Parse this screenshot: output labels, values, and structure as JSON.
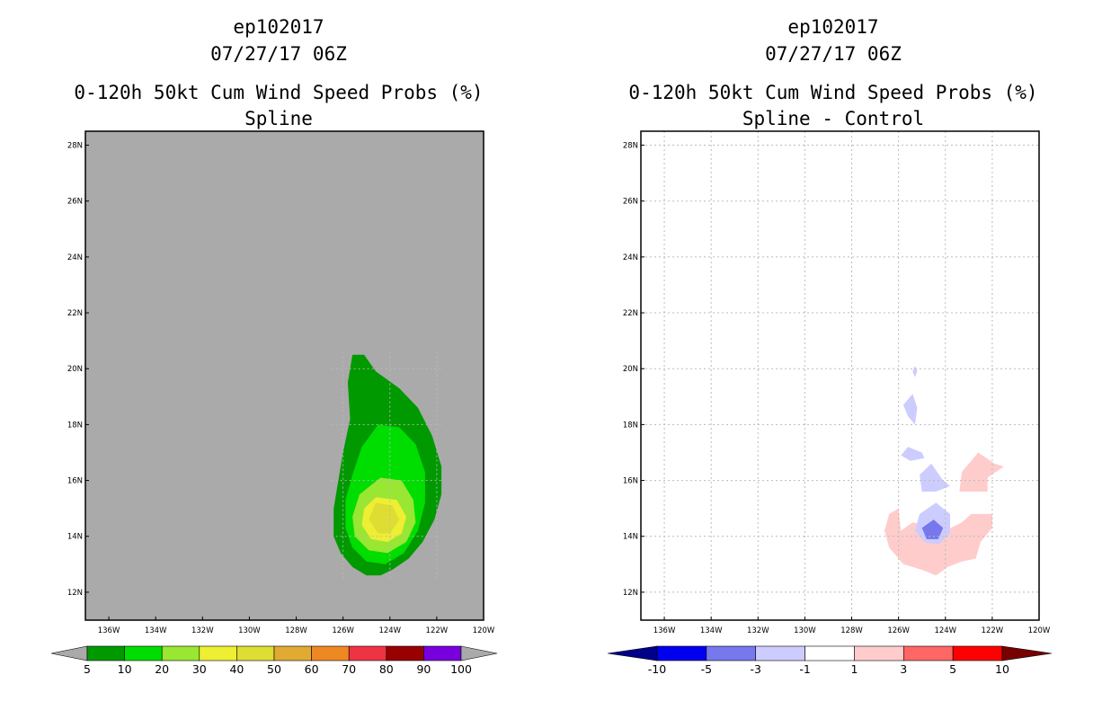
{
  "left": {
    "title_lines": [
      "ep102017",
      "07/27/17 06Z",
      "0-120h 50kt Cum Wind Speed Probs (%)",
      "Spline"
    ],
    "chart_data": {
      "type": "heatmap",
      "title": "0-120h 50kt Cum Wind Speed Probs (%)",
      "subtitle": "Spline",
      "storm": "ep102017",
      "time": "07/27/17 06Z",
      "xlabel": "",
      "ylabel": "",
      "xlim": [
        -137,
        -120
      ],
      "ylim": [
        11,
        28.5
      ],
      "x_ticks": [
        -136,
        -134,
        -132,
        -130,
        -128,
        -126,
        -124,
        -122,
        -120
      ],
      "x_tick_labels": [
        "136W",
        "134W",
        "132W",
        "130W",
        "128W",
        "126W",
        "124W",
        "122W",
        "120W"
      ],
      "y_ticks": [
        12,
        14,
        16,
        18,
        20,
        22,
        24,
        26,
        28
      ],
      "y_tick_labels": [
        "12N",
        "14N",
        "16N",
        "18N",
        "20N",
        "22N",
        "24N",
        "26N",
        "28N"
      ],
      "background_color": "#aaaaaa",
      "contours": [
        {
          "level": "5-10",
          "color": "#009900",
          "points": [
            [
              -125.6,
              20.5
            ],
            [
              -125.1,
              20.5
            ],
            [
              -124.6,
              19.9
            ],
            [
              -123.6,
              19.3
            ],
            [
              -122.8,
              18.6
            ],
            [
              -122.2,
              17.6
            ],
            [
              -121.8,
              16.5
            ],
            [
              -121.8,
              15.5
            ],
            [
              -122.1,
              14.6
            ],
            [
              -122.6,
              13.8
            ],
            [
              -123.2,
              13.2
            ],
            [
              -123.9,
              12.8
            ],
            [
              -124.4,
              12.6
            ],
            [
              -125.0,
              12.6
            ],
            [
              -125.6,
              12.9
            ],
            [
              -126.1,
              13.4
            ],
            [
              -126.4,
              14.0
            ],
            [
              -126.4,
              15.0
            ],
            [
              -126.2,
              16.0
            ],
            [
              -126.0,
              17.0
            ],
            [
              -125.7,
              18.2
            ],
            [
              -125.8,
              19.5
            ]
          ]
        },
        {
          "level": "10-20",
          "color": "#00dd00",
          "points": [
            [
              -124.5,
              18.0
            ],
            [
              -123.6,
              17.9
            ],
            [
              -122.9,
              17.3
            ],
            [
              -122.5,
              16.3
            ],
            [
              -122.5,
              15.2
            ],
            [
              -122.8,
              14.2
            ],
            [
              -123.4,
              13.4
            ],
            [
              -124.2,
              13.0
            ],
            [
              -125.0,
              13.1
            ],
            [
              -125.6,
              13.6
            ],
            [
              -125.9,
              14.3
            ],
            [
              -125.9,
              15.3
            ],
            [
              -125.6,
              16.2
            ],
            [
              -125.2,
              17.2
            ]
          ]
        },
        {
          "level": "20-30",
          "color": "#99e633",
          "points": [
            [
              -124.4,
              16.1
            ],
            [
              -123.5,
              16.0
            ],
            [
              -123.0,
              15.3
            ],
            [
              -122.9,
              14.5
            ],
            [
              -123.3,
              13.8
            ],
            [
              -124.1,
              13.4
            ],
            [
              -124.9,
              13.5
            ],
            [
              -125.5,
              14.0
            ],
            [
              -125.6,
              14.7
            ],
            [
              -125.3,
              15.5
            ]
          ]
        },
        {
          "level": "30-40",
          "color": "#eeee33",
          "points": [
            [
              -124.6,
              15.4
            ],
            [
              -123.7,
              15.3
            ],
            [
              -123.3,
              14.7
            ],
            [
              -123.5,
              14.1
            ],
            [
              -124.1,
              13.8
            ],
            [
              -124.8,
              13.9
            ],
            [
              -125.2,
              14.4
            ],
            [
              -125.1,
              15.0
            ]
          ]
        },
        {
          "level": "40-50",
          "color": "#dddd33",
          "points": [
            [
              -124.6,
              15.2
            ],
            [
              -123.9,
              15.1
            ],
            [
              -123.6,
              14.6
            ],
            [
              -124.0,
              14.1
            ],
            [
              -124.5,
              14.1
            ],
            [
              -124.9,
              14.6
            ]
          ]
        }
      ],
      "legend": {
        "position": "bottom",
        "labels": [
          "5",
          "10",
          "20",
          "30",
          "40",
          "50",
          "60",
          "70",
          "80",
          "90",
          "100"
        ],
        "under_color": "#aaaaaa",
        "over_color": "#aaaaaa",
        "colors": [
          "#009900",
          "#00dd00",
          "#99e633",
          "#eeee33",
          "#dddd33",
          "#e0aa33",
          "#ee8822",
          "#ee3344",
          "#990000",
          "#7700dd"
        ]
      }
    }
  },
  "right": {
    "title_lines": [
      "ep102017",
      "07/27/17 06Z",
      "0-120h 50kt Cum Wind Speed Probs (%)",
      "Spline - Control"
    ],
    "chart_data": {
      "type": "heatmap",
      "title": "0-120h 50kt Cum Wind Speed Probs (%)",
      "subtitle": "Spline - Control",
      "storm": "ep102017",
      "time": "07/27/17 06Z",
      "xlabel": "",
      "ylabel": "",
      "xlim": [
        -137,
        -120
      ],
      "ylim": [
        11,
        28.5
      ],
      "grid": true,
      "x_ticks": [
        -136,
        -134,
        -132,
        -130,
        -128,
        -126,
        -124,
        -122,
        -120
      ],
      "x_tick_labels": [
        "136W",
        "134W",
        "132W",
        "130W",
        "128W",
        "126W",
        "124W",
        "122W",
        "120W"
      ],
      "y_ticks": [
        12,
        14,
        16,
        18,
        20,
        22,
        24,
        26,
        28
      ],
      "y_tick_labels": [
        "12N",
        "14N",
        "16N",
        "18N",
        "20N",
        "22N",
        "24N",
        "26N",
        "28N"
      ],
      "background_color": "#ffffff",
      "contours": [
        {
          "level": "1-3",
          "color": "#ffcccc",
          "points": [
            [
              -125.9,
              14.2
            ],
            [
              -125.4,
              14.5
            ],
            [
              -124.8,
              14.4
            ],
            [
              -124.4,
              14.3
            ],
            [
              -124.0,
              14.2
            ],
            [
              -123.3,
              14.5
            ],
            [
              -122.9,
              14.8
            ],
            [
              -122.0,
              14.8
            ],
            [
              -122.0,
              14.3
            ],
            [
              -122.5,
              13.8
            ],
            [
              -122.7,
              13.2
            ],
            [
              -123.3,
              13.1
            ],
            [
              -123.9,
              12.9
            ],
            [
              -124.4,
              12.6
            ],
            [
              -125.0,
              12.8
            ],
            [
              -125.8,
              13.0
            ],
            [
              -126.4,
              13.6
            ],
            [
              -126.6,
              14.2
            ],
            [
              -126.4,
              14.8
            ],
            [
              -126.0,
              15.0
            ]
          ]
        },
        {
          "level": "1-3b",
          "color": "#ffcccc",
          "points": [
            [
              -122.6,
              17.0
            ],
            [
              -121.9,
              16.6
            ],
            [
              -121.5,
              16.5
            ],
            [
              -122.2,
              16.1
            ],
            [
              -122.2,
              15.6
            ],
            [
              -122.8,
              15.6
            ],
            [
              -123.4,
              15.6
            ],
            [
              -123.3,
              16.3
            ]
          ]
        },
        {
          "level": "-1--3a",
          "color": "#ccccff",
          "points": [
            [
              -124.4,
              15.2
            ],
            [
              -123.8,
              14.8
            ],
            [
              -123.8,
              14.1
            ],
            [
              -124.3,
              13.7
            ],
            [
              -124.9,
              13.8
            ],
            [
              -125.3,
              14.2
            ],
            [
              -125.1,
              14.8
            ]
          ]
        },
        {
          "level": "-3--5",
          "color": "#7777ee",
          "points": [
            [
              -124.5,
              14.6
            ],
            [
              -124.1,
              14.3
            ],
            [
              -124.3,
              13.9
            ],
            [
              -124.8,
              13.9
            ],
            [
              -125.0,
              14.3
            ]
          ]
        },
        {
          "level": "-1--3b",
          "color": "#ccccff",
          "points": [
            [
              -124.6,
              16.6
            ],
            [
              -124.1,
              16.0
            ],
            [
              -123.8,
              15.8
            ],
            [
              -124.4,
              15.6
            ],
            [
              -125.0,
              15.6
            ],
            [
              -125.1,
              16.2
            ]
          ]
        },
        {
          "level": "-1--3c",
          "color": "#ccccff",
          "points": [
            [
              -125.6,
              17.2
            ],
            [
              -125.0,
              17.0
            ],
            [
              -124.9,
              16.8
            ],
            [
              -125.5,
              16.7
            ],
            [
              -125.9,
              16.9
            ]
          ]
        },
        {
          "level": "-1--3d",
          "color": "#ccccff",
          "points": [
            [
              -125.4,
              19.1
            ],
            [
              -125.2,
              18.6
            ],
            [
              -125.3,
              18.0
            ],
            [
              -125.6,
              18.3
            ],
            [
              -125.8,
              18.7
            ]
          ]
        },
        {
          "level": "-1--3e",
          "color": "#ccccff",
          "points": [
            [
              -125.3,
              20.1
            ],
            [
              -125.2,
              19.9
            ],
            [
              -125.3,
              19.7
            ],
            [
              -125.4,
              19.9
            ]
          ]
        }
      ],
      "legend": {
        "position": "bottom",
        "labels": [
          "-10",
          "-5",
          "-3",
          "-1",
          "1",
          "3",
          "5",
          "10"
        ],
        "under_color": "#000088",
        "over_color": "#770000",
        "colors": [
          "#0000ee",
          "#7777ee",
          "#ccccff",
          "#ffffff",
          "#ffcccc",
          "#ff6666",
          "#ff0000"
        ]
      }
    }
  }
}
